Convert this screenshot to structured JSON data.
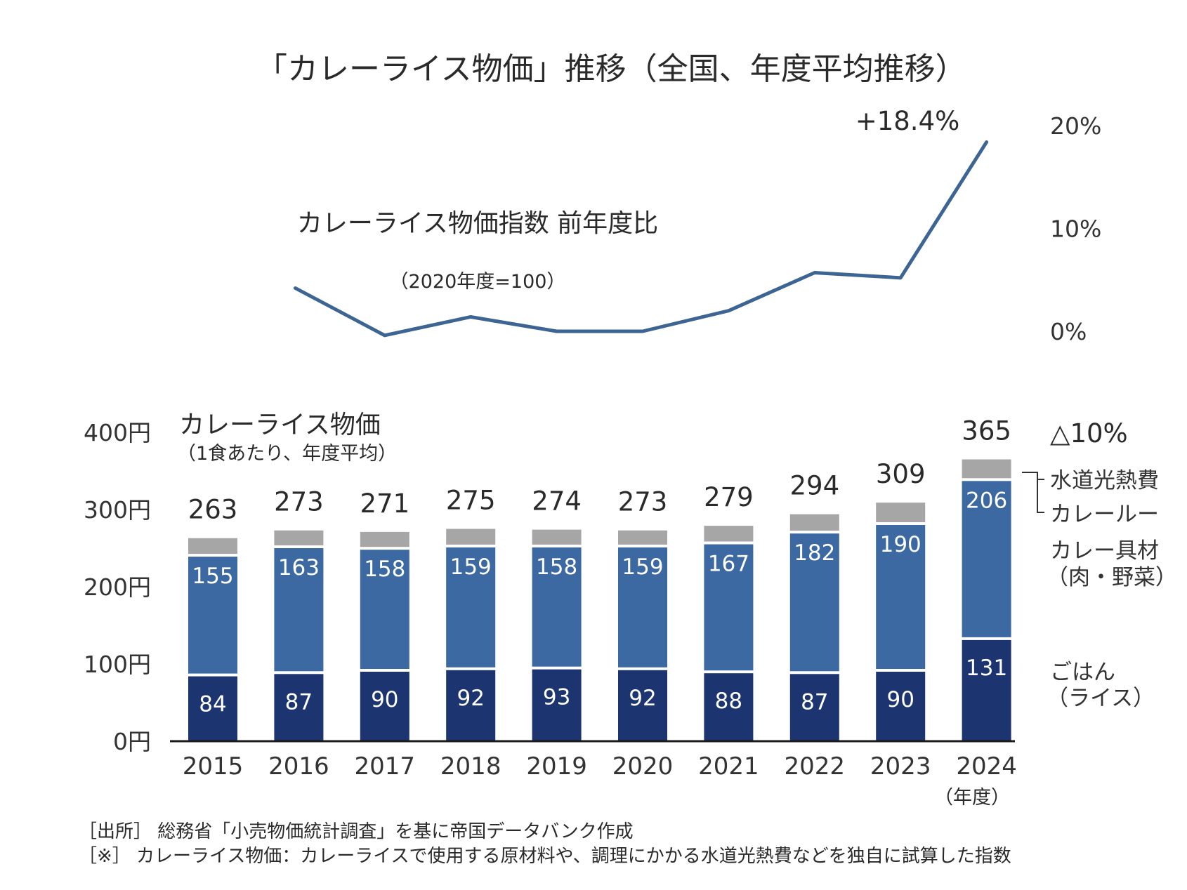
{
  "title": "「カレーライス物価」推移（全国、年度平均推移）",
  "colors": {
    "rice": "#1c3470",
    "ingredients": "#3c69a1",
    "utilities_roux": "#a6a6a6",
    "line": "#3d6594",
    "axis": "#1a1a1a"
  },
  "chart_data": [
    {
      "type": "line",
      "title": "カレーライス物価指数 前年度比",
      "subtitle": "（2020年度=100）",
      "x": [
        "2016",
        "2017",
        "2018",
        "2019",
        "2020",
        "2021",
        "2022",
        "2023",
        "2024"
      ],
      "series": [
        {
          "name": "カレーライス物価指数 前年度比",
          "values": [
            4.2,
            -0.4,
            1.4,
            0.0,
            0.0,
            2.0,
            5.7,
            5.2,
            18.4
          ]
        }
      ],
      "annotation": "+18.4%",
      "y_axis_position": "right",
      "yticks": [
        "0%",
        "10%",
        "20%"
      ],
      "ylim": [
        0,
        20
      ],
      "grid": false
    },
    {
      "type": "bar",
      "stacked": true,
      "title": "カレーライス物価",
      "subtitle": "（1食あたり、年度平均）",
      "categories": [
        "2015",
        "2016",
        "2017",
        "2018",
        "2019",
        "2020",
        "2021",
        "2022",
        "2023",
        "2024"
      ],
      "x_unit_label": "（年度）",
      "series": [
        {
          "name": "ごはん（ライス）",
          "key": "rice",
          "values": [
            84,
            87,
            90,
            92,
            93,
            92,
            88,
            87,
            90,
            131
          ]
        },
        {
          "name": "カレー具材（肉・野菜）",
          "key": "ingredients",
          "values": [
            155,
            163,
            158,
            159,
            158,
            159,
            167,
            182,
            190,
            206
          ]
        },
        {
          "name": "カレールー・水道光熱費",
          "key": "utilities_roux",
          "values": [
            24,
            23,
            23,
            24,
            23,
            22,
            24,
            25,
            29,
            28
          ]
        }
      ],
      "totals": [
        263,
        273,
        271,
        275,
        274,
        273,
        279,
        294,
        309,
        365
      ],
      "yticks": [
        "0円",
        "100円",
        "200円",
        "300円",
        "400円"
      ],
      "ylim": [
        0,
        400
      ],
      "grid": false,
      "legend": {
        "placement": "right",
        "items": [
          "△10%",
          "水道光熱費",
          "カレールー",
          "カレー具材",
          "（肉・野菜）",
          "ごはん",
          "（ライス）"
        ]
      }
    }
  ],
  "footnotes": [
    "［出所］ 総務省「小売物価統計調査」を基に帝国データバンク作成",
    "［※］ カレーライス物価：カレーライスで使用する原材料や、調理にかかる水道光熱費などを独自に試算した指数"
  ]
}
